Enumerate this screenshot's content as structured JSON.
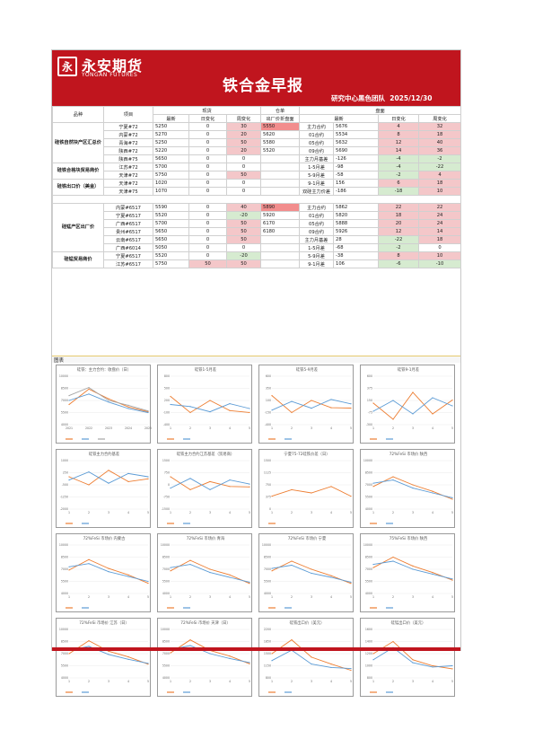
{
  "header": {
    "logo_cn": "永安期货",
    "logo_en": "YONGAN FUTURES",
    "title": "铁合金早报",
    "team": "研究中心黑色团队",
    "date": "2025/12/30"
  },
  "table": {
    "h_variety": "品种",
    "h_item": "项目",
    "h_spot": "现货",
    "h_warehouse": "仓单",
    "h_futures": "盘面",
    "h_latest": "最新",
    "h_day": "日变化",
    "h_week": "周变化",
    "h_wh_price": "出厂价折盘面",
    "h_fut_latest": "最新",
    "sections": [
      {
        "label": "硅铁自然块产区汇总价",
        "rows": [
          {
            "item": "宁夏#72",
            "latest": "5250",
            "day": "0",
            "week": "30",
            "wh": "5550",
            "fut": "主力合约",
            "flatest": "5676",
            "fday": "4",
            "fweek": "32",
            "wk": "pink",
            "whc": "red",
            "fdc": "pink",
            "fwc": "pink"
          },
          {
            "item": "内蒙#72",
            "latest": "5270",
            "day": "0",
            "week": "20",
            "wh": "5620",
            "fut": "01合约",
            "flatest": "5534",
            "fday": "8",
            "fweek": "18",
            "wk": "pink",
            "whc": "",
            "fdc": "pink",
            "fwc": "pink"
          },
          {
            "item": "青海#72",
            "latest": "5250",
            "day": "0",
            "week": "50",
            "wh": "5580",
            "fut": "05合约",
            "flatest": "5632",
            "fday": "12",
            "fweek": "40",
            "wk": "pink",
            "whc": "",
            "fdc": "pink",
            "fwc": "pink"
          },
          {
            "item": "陕西#72",
            "latest": "5220",
            "day": "0",
            "week": "20",
            "wh": "5520",
            "fut": "09合约",
            "flatest": "5690",
            "fday": "14",
            "fweek": "36",
            "wk": "pink",
            "whc": "",
            "fdc": "pink",
            "fwc": "pink"
          },
          {
            "item": "陕西#75",
            "latest": "5650",
            "day": "0",
            "week": "0",
            "wh": "",
            "fut": "主力月基差",
            "flatest": "-126",
            "fday": "-4",
            "fweek": "-2",
            "wk": "",
            "whc": "",
            "fdc": "green",
            "fwc": "green"
          }
        ]
      },
      {
        "label": "硅铁合格块贸易商价",
        "rows": [
          {
            "item": "江苏#72",
            "latest": "5700",
            "day": "0",
            "week": "0",
            "wh": "",
            "fut": "1-5月差",
            "flatest": "-98",
            "fday": "-4",
            "fweek": "-22",
            "wk": "",
            "whc": "",
            "fdc": "green",
            "fwc": "green"
          },
          {
            "item": "天津#72",
            "latest": "5750",
            "day": "0",
            "week": "50",
            "wh": "",
            "fut": "5-9月差",
            "flatest": "-58",
            "fday": "-2",
            "fweek": "4",
            "wk": "pink",
            "whc": "",
            "fdc": "green",
            "fwc": "pink"
          }
        ]
      },
      {
        "label": "硅铁出口价（美金）",
        "rows": [
          {
            "item": "天津#72",
            "latest": "1020",
            "day": "0",
            "week": "0",
            "wh": "",
            "fut": "9-1月差",
            "flatest": "156",
            "fday": "6",
            "fweek": "18",
            "wk": "",
            "whc": "",
            "fdc": "pink",
            "fwc": "pink"
          },
          {
            "item": "天津#75",
            "latest": "1070",
            "day": "0",
            "week": "0",
            "wh": "",
            "fut": "双硅主力价差",
            "flatest": "-186",
            "fday": "-18",
            "fweek": "10",
            "wk": "",
            "whc": "",
            "fdc": "green",
            "fwc": "pink"
          }
        ]
      },
      {
        "label": "硅锰产区出厂价",
        "rows": [
          {
            "item": "内蒙#6517",
            "latest": "5590",
            "day": "0",
            "week": "40",
            "wh": "5890",
            "fut": "主力合约",
            "flatest": "5862",
            "fday": "22",
            "fweek": "22",
            "wk": "pink",
            "whc": "red",
            "fdc": "pink",
            "fwc": "pink"
          },
          {
            "item": "宁夏#6517",
            "latest": "5520",
            "day": "0",
            "week": "-20",
            "wh": "5920",
            "fut": "01合约",
            "flatest": "5820",
            "fday": "18",
            "fweek": "24",
            "wk": "green",
            "whc": "",
            "fdc": "pink",
            "fwc": "pink"
          },
          {
            "item": "广西#6517",
            "latest": "5700",
            "day": "0",
            "week": "50",
            "wh": "6170",
            "fut": "05合约",
            "flatest": "5888",
            "fday": "20",
            "fweek": "24",
            "wk": "pink",
            "whc": "",
            "fdc": "pink",
            "fwc": "pink"
          },
          {
            "item": "贵州#6517",
            "latest": "5650",
            "day": "0",
            "week": "50",
            "wh": "6180",
            "fut": "09合约",
            "flatest": "5926",
            "fday": "12",
            "fweek": "14",
            "wk": "pink",
            "whc": "",
            "fdc": "pink",
            "fwc": "pink"
          },
          {
            "item": "云南#6517",
            "latest": "5650",
            "day": "0",
            "week": "50",
            "wh": "",
            "fut": "主力月基差",
            "flatest": "28",
            "fday": "-22",
            "fweek": "18",
            "wk": "pink",
            "whc": "",
            "fdc": "green",
            "fwc": "pink"
          },
          {
            "item": "广西#6014",
            "latest": "5050",
            "day": "0",
            "week": "0",
            "wh": "",
            "fut": "1-5月差",
            "flatest": "-68",
            "fday": "-2",
            "fweek": "0",
            "wk": "",
            "whc": "",
            "fdc": "green",
            "fwc": ""
          }
        ]
      },
      {
        "label": "硅锰贸易商价",
        "rows": [
          {
            "item": "宁夏#6517",
            "latest": "5520",
            "day": "0",
            "week": "-20",
            "wh": "",
            "fut": "5-9月差",
            "flatest": "-38",
            "fday": "8",
            "fweek": "10",
            "wk": "green",
            "whc": "",
            "fdc": "pink",
            "fwc": "pink"
          },
          {
            "item": "江苏#6517",
            "latest": "5750",
            "day": "50",
            "week": "50",
            "wh": "",
            "fut": "9-1月差",
            "flatest": "106",
            "fday": "-6",
            "fweek": "-10",
            "wk": "pink",
            "whc": "",
            "fdc": "green",
            "fwc": "green",
            "dc": "pink"
          }
        ]
      }
    ]
  },
  "charts_label": "图表",
  "chart_data": [
    {
      "type": "line",
      "title": "硅铁：主力合约：收盘价（日）",
      "x": [
        "2021",
        "2022",
        "2023",
        "2024",
        "2025"
      ],
      "ylim": [
        4000,
        10000
      ],
      "series": [
        {
          "values": [
            6500,
            8400,
            7200,
            6200,
            5600
          ]
        },
        {
          "values": [
            7000,
            7800,
            6800,
            6000,
            5500
          ]
        },
        {
          "values": [
            7600,
            8600,
            7000,
            6400,
            5700
          ]
        }
      ]
    },
    {
      "type": "line",
      "title": "硅铁1-5月差",
      "x": [
        "1",
        "2",
        "3",
        "4",
        "5"
      ],
      "ylim": [
        -400,
        800
      ],
      "series": [
        {
          "values": [
            300,
            -100,
            200,
            -50,
            -98
          ]
        },
        {
          "values": [
            100,
            50,
            -80,
            120,
            0
          ]
        }
      ]
    },
    {
      "type": "line",
      "title": "硅铁5-9月差",
      "x": [
        "1",
        "2",
        "3",
        "4",
        "5"
      ],
      "ylim": [
        -400,
        600
      ],
      "series": [
        {
          "values": [
            200,
            -150,
            100,
            -50,
            -58
          ]
        },
        {
          "values": [
            -100,
            80,
            -60,
            120,
            30
          ]
        }
      ]
    },
    {
      "type": "line",
      "title": "硅铁9-1月差",
      "x": [
        "1",
        "2",
        "3",
        "4",
        "5"
      ],
      "ylim": [
        -300,
        600
      ],
      "series": [
        {
          "values": [
            100,
            -200,
            300,
            -100,
            156
          ]
        },
        {
          "values": [
            -50,
            150,
            -100,
            200,
            50
          ]
        }
      ]
    },
    {
      "type": "line",
      "title": "硅铁主力合约基差",
      "x": [
        "1",
        "2",
        "3",
        "4",
        "5"
      ],
      "ylim": [
        -2000,
        1000
      ],
      "series": [
        {
          "values": [
            0,
            -500,
            400,
            -300,
            -126
          ]
        },
        {
          "values": [
            -200,
            300,
            -400,
            200,
            0
          ]
        }
      ]
    },
    {
      "type": "line",
      "title": "硅铁主力合约江苏基差（贸易商）",
      "x": [
        "1",
        "2",
        "3",
        "4",
        "5"
      ],
      "ylim": [
        -1500,
        1500
      ],
      "series": [
        {
          "values": [
            500,
            -300,
            200,
            -100,
            -126
          ]
        },
        {
          "values": [
            -200,
            400,
            -300,
            300,
            50
          ]
        }
      ]
    },
    {
      "type": "line",
      "title": "宁夏75-72硅铁价差（日）",
      "x": [
        "1",
        "2",
        "3",
        "4",
        "5"
      ],
      "ylim": [
        0,
        1500
      ],
      "series": [
        {
          "values": [
            400,
            600,
            500,
            700,
            400
          ]
        }
      ]
    },
    {
      "type": "line",
      "title": "72%FeSi 市场价 陕西",
      "x": [
        "1",
        "2",
        "3",
        "4",
        "5"
      ],
      "ylim": [
        4000,
        10000
      ],
      "series": [
        {
          "values": [
            6800,
            8000,
            7000,
            6200,
            5220
          ]
        },
        {
          "values": [
            7200,
            7600,
            6600,
            6000,
            5400
          ]
        }
      ]
    },
    {
      "type": "line",
      "title": "72%FeSi 市场价 内蒙古",
      "x": [
        "1",
        "2",
        "3",
        "4",
        "5"
      ],
      "ylim": [
        4000,
        10000
      ],
      "series": [
        {
          "values": [
            6900,
            8200,
            7100,
            6300,
            5270
          ]
        },
        {
          "values": [
            7300,
            7700,
            6700,
            6100,
            5500
          ]
        }
      ]
    },
    {
      "type": "line",
      "title": "72%FeSi 市场价 青海",
      "x": [
        "1",
        "2",
        "3",
        "4",
        "5"
      ],
      "ylim": [
        4000,
        10000
      ],
      "series": [
        {
          "values": [
            6800,
            8100,
            7000,
            6300,
            5250
          ]
        },
        {
          "values": [
            7200,
            7600,
            6600,
            6000,
            5400
          ]
        }
      ]
    },
    {
      "type": "line",
      "title": "72%FeSi 市场价 宁夏",
      "x": [
        "1",
        "2",
        "3",
        "4",
        "5"
      ],
      "ylim": [
        4000,
        10000
      ],
      "series": [
        {
          "values": [
            6800,
            8000,
            7000,
            6200,
            5250
          ]
        },
        {
          "values": [
            7100,
            7500,
            6500,
            6000,
            5400
          ]
        }
      ]
    },
    {
      "type": "line",
      "title": "75%FeSi 市场价 陕西",
      "x": [
        "1",
        "2",
        "3",
        "4",
        "5"
      ],
      "ylim": [
        4000,
        10000
      ],
      "series": [
        {
          "values": [
            7200,
            8500,
            7400,
            6600,
            5650
          ]
        },
        {
          "values": [
            7600,
            8000,
            7000,
            6400,
            5800
          ]
        }
      ]
    },
    {
      "type": "line",
      "title": "72%FeSi 市场价 江苏（日）",
      "x": [
        "1",
        "2",
        "3",
        "4",
        "5"
      ],
      "ylim": [
        4000,
        10000
      ],
      "series": [
        {
          "values": [
            7000,
            8600,
            7300,
            6600,
            5700
          ]
        },
        {
          "values": [
            7400,
            7900,
            6900,
            6300,
            5800
          ]
        }
      ]
    },
    {
      "type": "line",
      "title": "72%FeSi 市场价 天津（日）",
      "x": [
        "1",
        "2",
        "3",
        "4",
        "5"
      ],
      "ylim": [
        4000,
        10000
      ],
      "series": [
        {
          "values": [
            7100,
            8700,
            7400,
            6700,
            5750
          ]
        },
        {
          "values": [
            7500,
            8000,
            7000,
            6400,
            5900
          ]
        }
      ]
    },
    {
      "type": "line",
      "title": "硅铁出口价（美元）",
      "x": [
        "1",
        "2",
        "3",
        "4",
        "5"
      ],
      "ylim": [
        800,
        2200
      ],
      "series": [
        {
          "values": [
            1500,
            1900,
            1400,
            1200,
            1020
          ]
        },
        {
          "values": [
            1300,
            1600,
            1200,
            1100,
            1070
          ]
        }
      ]
    },
    {
      "type": "line",
      "title": "硅锰出口价（美元）",
      "x": [
        "1",
        "2",
        "3",
        "4",
        "5"
      ],
      "ylim": [
        800,
        1600
      ],
      "series": [
        {
          "values": [
            1200,
            1400,
            1100,
            1000,
            950
          ]
        },
        {
          "values": [
            1100,
            1300,
            1050,
            980,
            1000
          ]
        }
      ]
    }
  ],
  "colors": {
    "banner": "#c0151e",
    "pink": "#f4c7c9",
    "red": "#f28d8d",
    "green": "#d6ebd0",
    "s1": "#ed7d31",
    "s2": "#5b9bd5",
    "s3": "#a5a5a5",
    "s4": "#ffc000",
    "s5": "#e00000"
  }
}
